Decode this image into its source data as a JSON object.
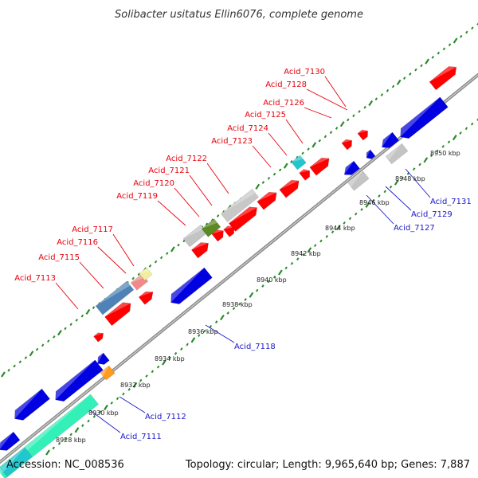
{
  "title": "Solibacter usitatus Ellin6076, complete genome",
  "footer": {
    "accession": "Accession: NC_008536",
    "summary": "Topology: circular; Length: 9,965,640 bp; Genes: 7,887"
  },
  "colors": {
    "forward_gene": "#ff0000",
    "reverse_gene": "#0000e0",
    "forward_label": "#e8000b",
    "reverse_label": "#1a17c8",
    "backbone": "#8c8c8c",
    "ticks": "#2a8a2a"
  },
  "scale_labels": [
    "8928 kbp",
    "8930 kbp",
    "8932 kbp",
    "8934 kbp",
    "8936 kbp",
    "8938 kbp",
    "8940 kbp",
    "8942 kbp",
    "8944 kbp",
    "8946 kbp",
    "8948 kbp",
    "8950 kbp"
  ],
  "forward_gene_labels": [
    "Acid_7113",
    "Acid_7115",
    "Acid_7116",
    "Acid_7117",
    "Acid_7119",
    "Acid_7120",
    "Acid_7121",
    "Acid_7122",
    "Acid_7123",
    "Acid_7124",
    "Acid_7125",
    "Acid_7126",
    "Acid_7128",
    "Acid_7130"
  ],
  "reverse_gene_labels": [
    "Acid_7111",
    "Acid_7112",
    "Acid_7118",
    "Acid_7127",
    "Acid_7129",
    "Acid_7131"
  ]
}
